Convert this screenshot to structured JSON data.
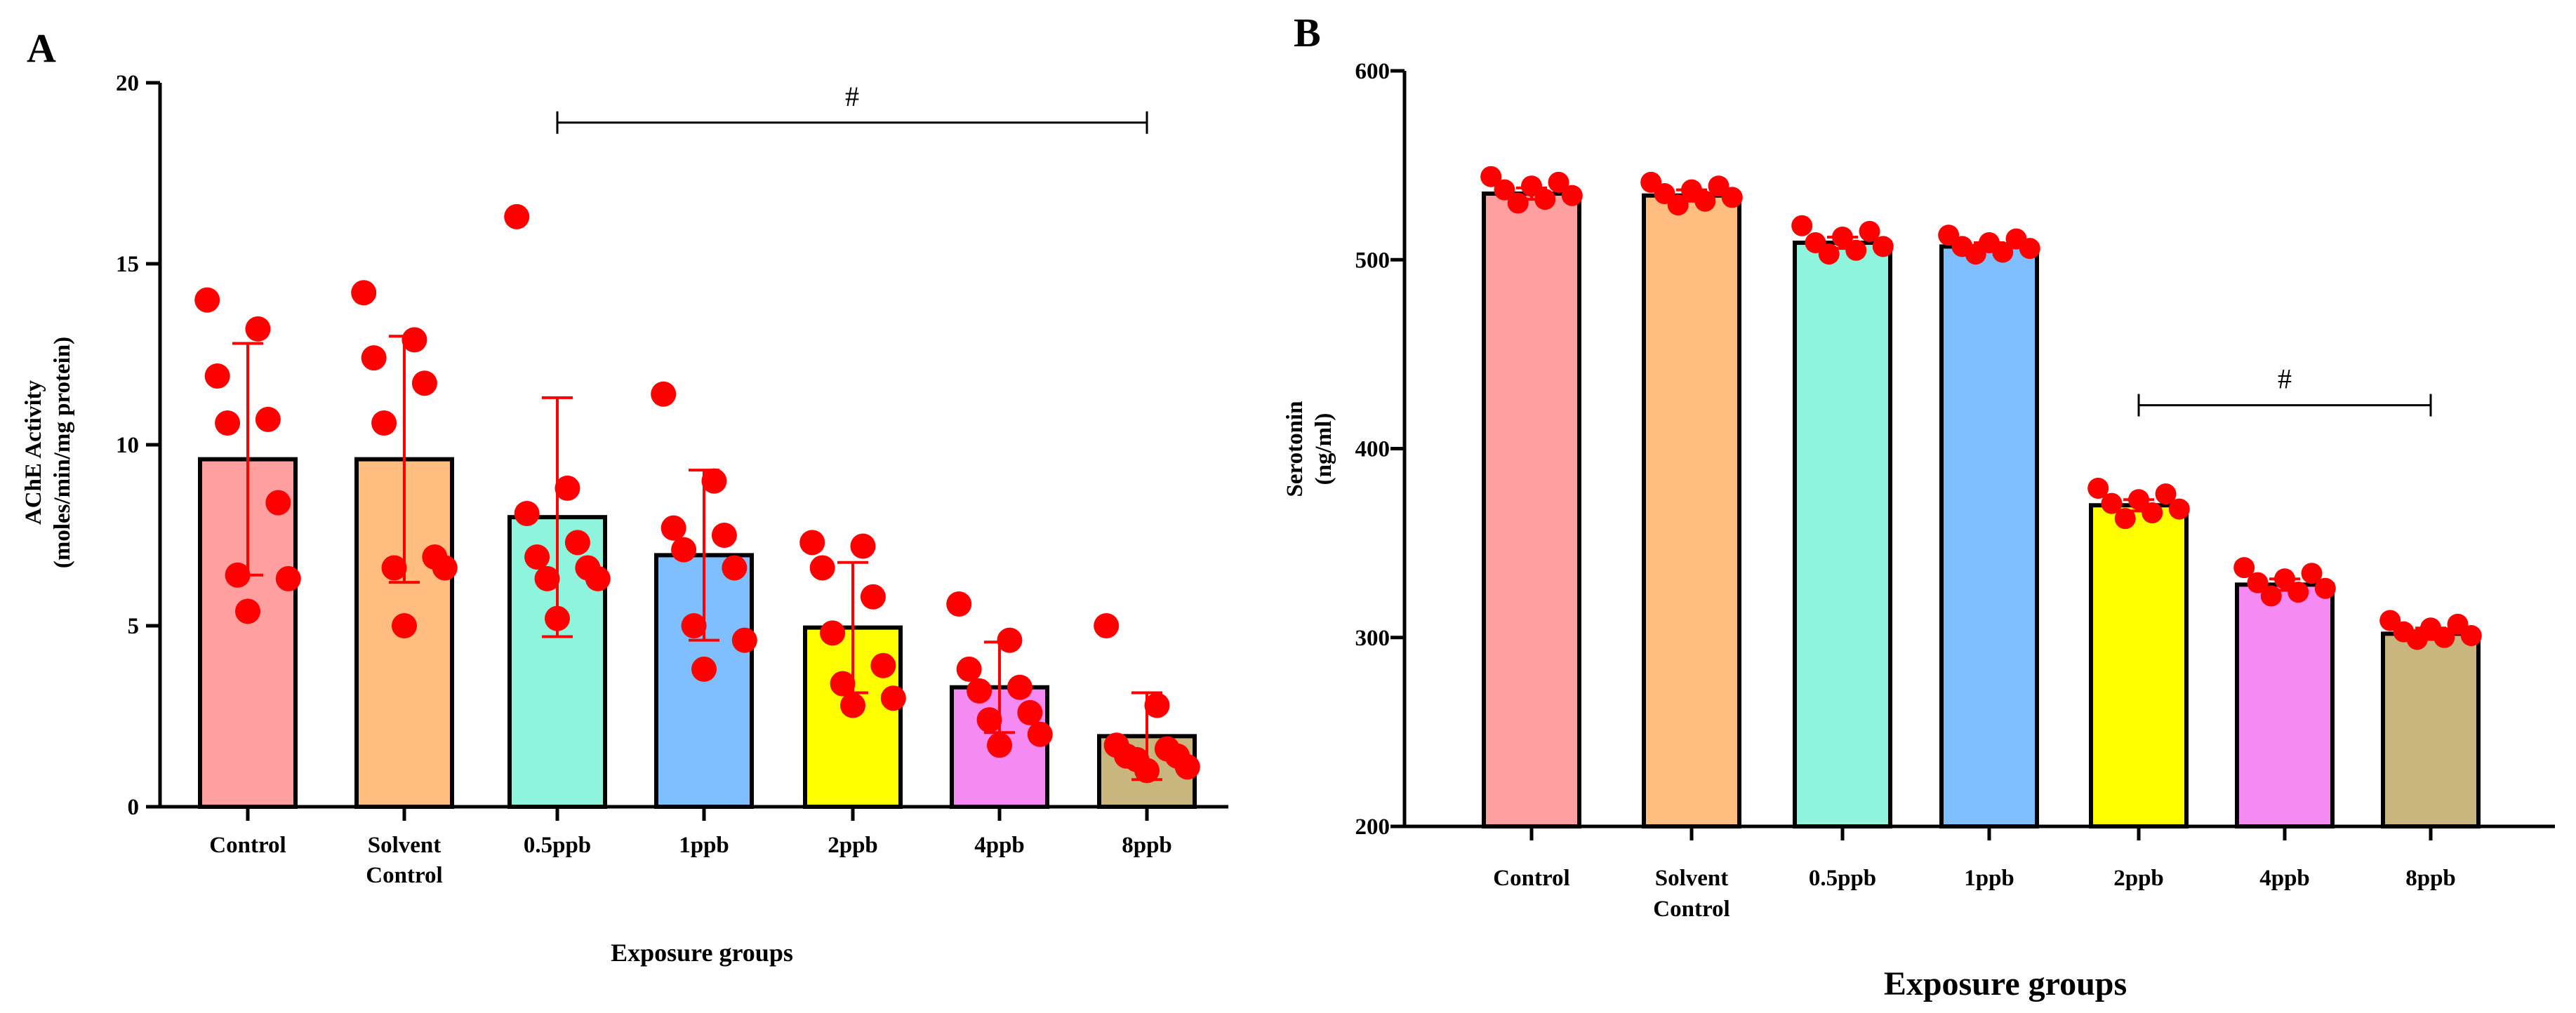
{
  "chart_data": [
    {
      "panel": "A",
      "type": "bar",
      "ylabel_line1": "AChE Activity",
      "ylabel_line2": "(moles/min/mg protein)",
      "xlabel": "Exposure groups",
      "ylim": [
        0,
        20
      ],
      "yticks": [
        0,
        5,
        10,
        15,
        20
      ],
      "categories": [
        {
          "line1": "Control",
          "line2": ""
        },
        {
          "line1": "Solvent",
          "line2": "Control"
        },
        {
          "line1": "0.5ppb",
          "line2": ""
        },
        {
          "line1": "1ppb",
          "line2": ""
        },
        {
          "line1": "2ppb",
          "line2": ""
        },
        {
          "line1": "4ppb",
          "line2": ""
        },
        {
          "line1": "8ppb",
          "line2": ""
        }
      ],
      "values": [
        9.6,
        9.6,
        8.0,
        6.95,
        4.95,
        3.3,
        1.95
      ],
      "errors": [
        3.2,
        3.4,
        3.3,
        2.35,
        1.8,
        1.25,
        1.2
      ],
      "colors": [
        "#ff9f9f",
        "#ffbe7f",
        "#8ef5dc",
        "#7fbfff",
        "#ffff00",
        "#f58af2",
        "#c8b67e"
      ],
      "points": [
        [
          14.0,
          13.2,
          11.9,
          10.7,
          10.6,
          8.4,
          6.4,
          6.3,
          5.4
        ],
        [
          14.2,
          12.9,
          12.4,
          11.7,
          10.6,
          6.9,
          6.6,
          6.6,
          5.0
        ],
        [
          16.3,
          8.8,
          8.1,
          7.3,
          6.9,
          6.6,
          6.3,
          6.3,
          5.2
        ],
        [
          11.4,
          9.0,
          7.7,
          7.5,
          7.1,
          6.6,
          5.0,
          4.6,
          3.8
        ],
        [
          7.3,
          7.2,
          6.6,
          5.8,
          4.8,
          3.9,
          3.4,
          3.0,
          2.8
        ],
        [
          5.6,
          4.6,
          3.8,
          3.3,
          3.2,
          2.6,
          2.4,
          2.0,
          1.7
        ],
        [
          5.0,
          2.8,
          1.7,
          1.6,
          1.4,
          1.4,
          1.3,
          1.1,
          1.0
        ]
      ],
      "significance": {
        "label": "#",
        "from_index": 2,
        "to_index": 6,
        "y": 18.9
      }
    },
    {
      "panel": "B",
      "type": "bar",
      "ylabel_line1": "Serotonin",
      "ylabel_line2": "(ng/ml)",
      "xlabel": "Exposure groups",
      "ylim": [
        200,
        600
      ],
      "yticks": [
        200,
        300,
        400,
        500,
        600
      ],
      "categories": [
        {
          "line1": "Control",
          "line2": ""
        },
        {
          "line1": "Solvent",
          "line2": "Control"
        },
        {
          "line1": "0.5ppb",
          "line2": ""
        },
        {
          "line1": "1ppb",
          "line2": ""
        },
        {
          "line1": "2ppb",
          "line2": ""
        },
        {
          "line1": "4ppb",
          "line2": ""
        },
        {
          "line1": "8ppb",
          "line2": ""
        }
      ],
      "values": [
        535,
        534,
        509,
        507,
        370,
        328,
        302
      ],
      "errors": [
        3,
        3,
        3,
        2,
        3,
        3,
        3
      ],
      "colors": [
        "#ff9f9f",
        "#ffbe7f",
        "#8ef5dc",
        "#7fbfff",
        "#ffff00",
        "#f58af2",
        "#c8b67e"
      ],
      "points": [
        [
          544,
          541,
          539,
          537,
          534,
          532,
          530
        ],
        [
          541,
          539,
          537,
          535,
          533,
          531,
          529
        ],
        [
          518,
          515,
          512,
          509,
          507,
          505,
          503
        ],
        [
          513,
          511,
          509,
          507,
          506,
          504,
          503
        ],
        [
          379,
          376,
          373,
          371,
          368,
          366,
          363
        ],
        [
          337,
          334,
          331,
          329,
          326,
          324,
          322
        ],
        [
          309,
          307,
          305,
          303,
          301,
          300,
          299
        ]
      ],
      "significance": {
        "label": "#",
        "from_index": 4,
        "to_index": 6,
        "y": 423
      }
    }
  ]
}
